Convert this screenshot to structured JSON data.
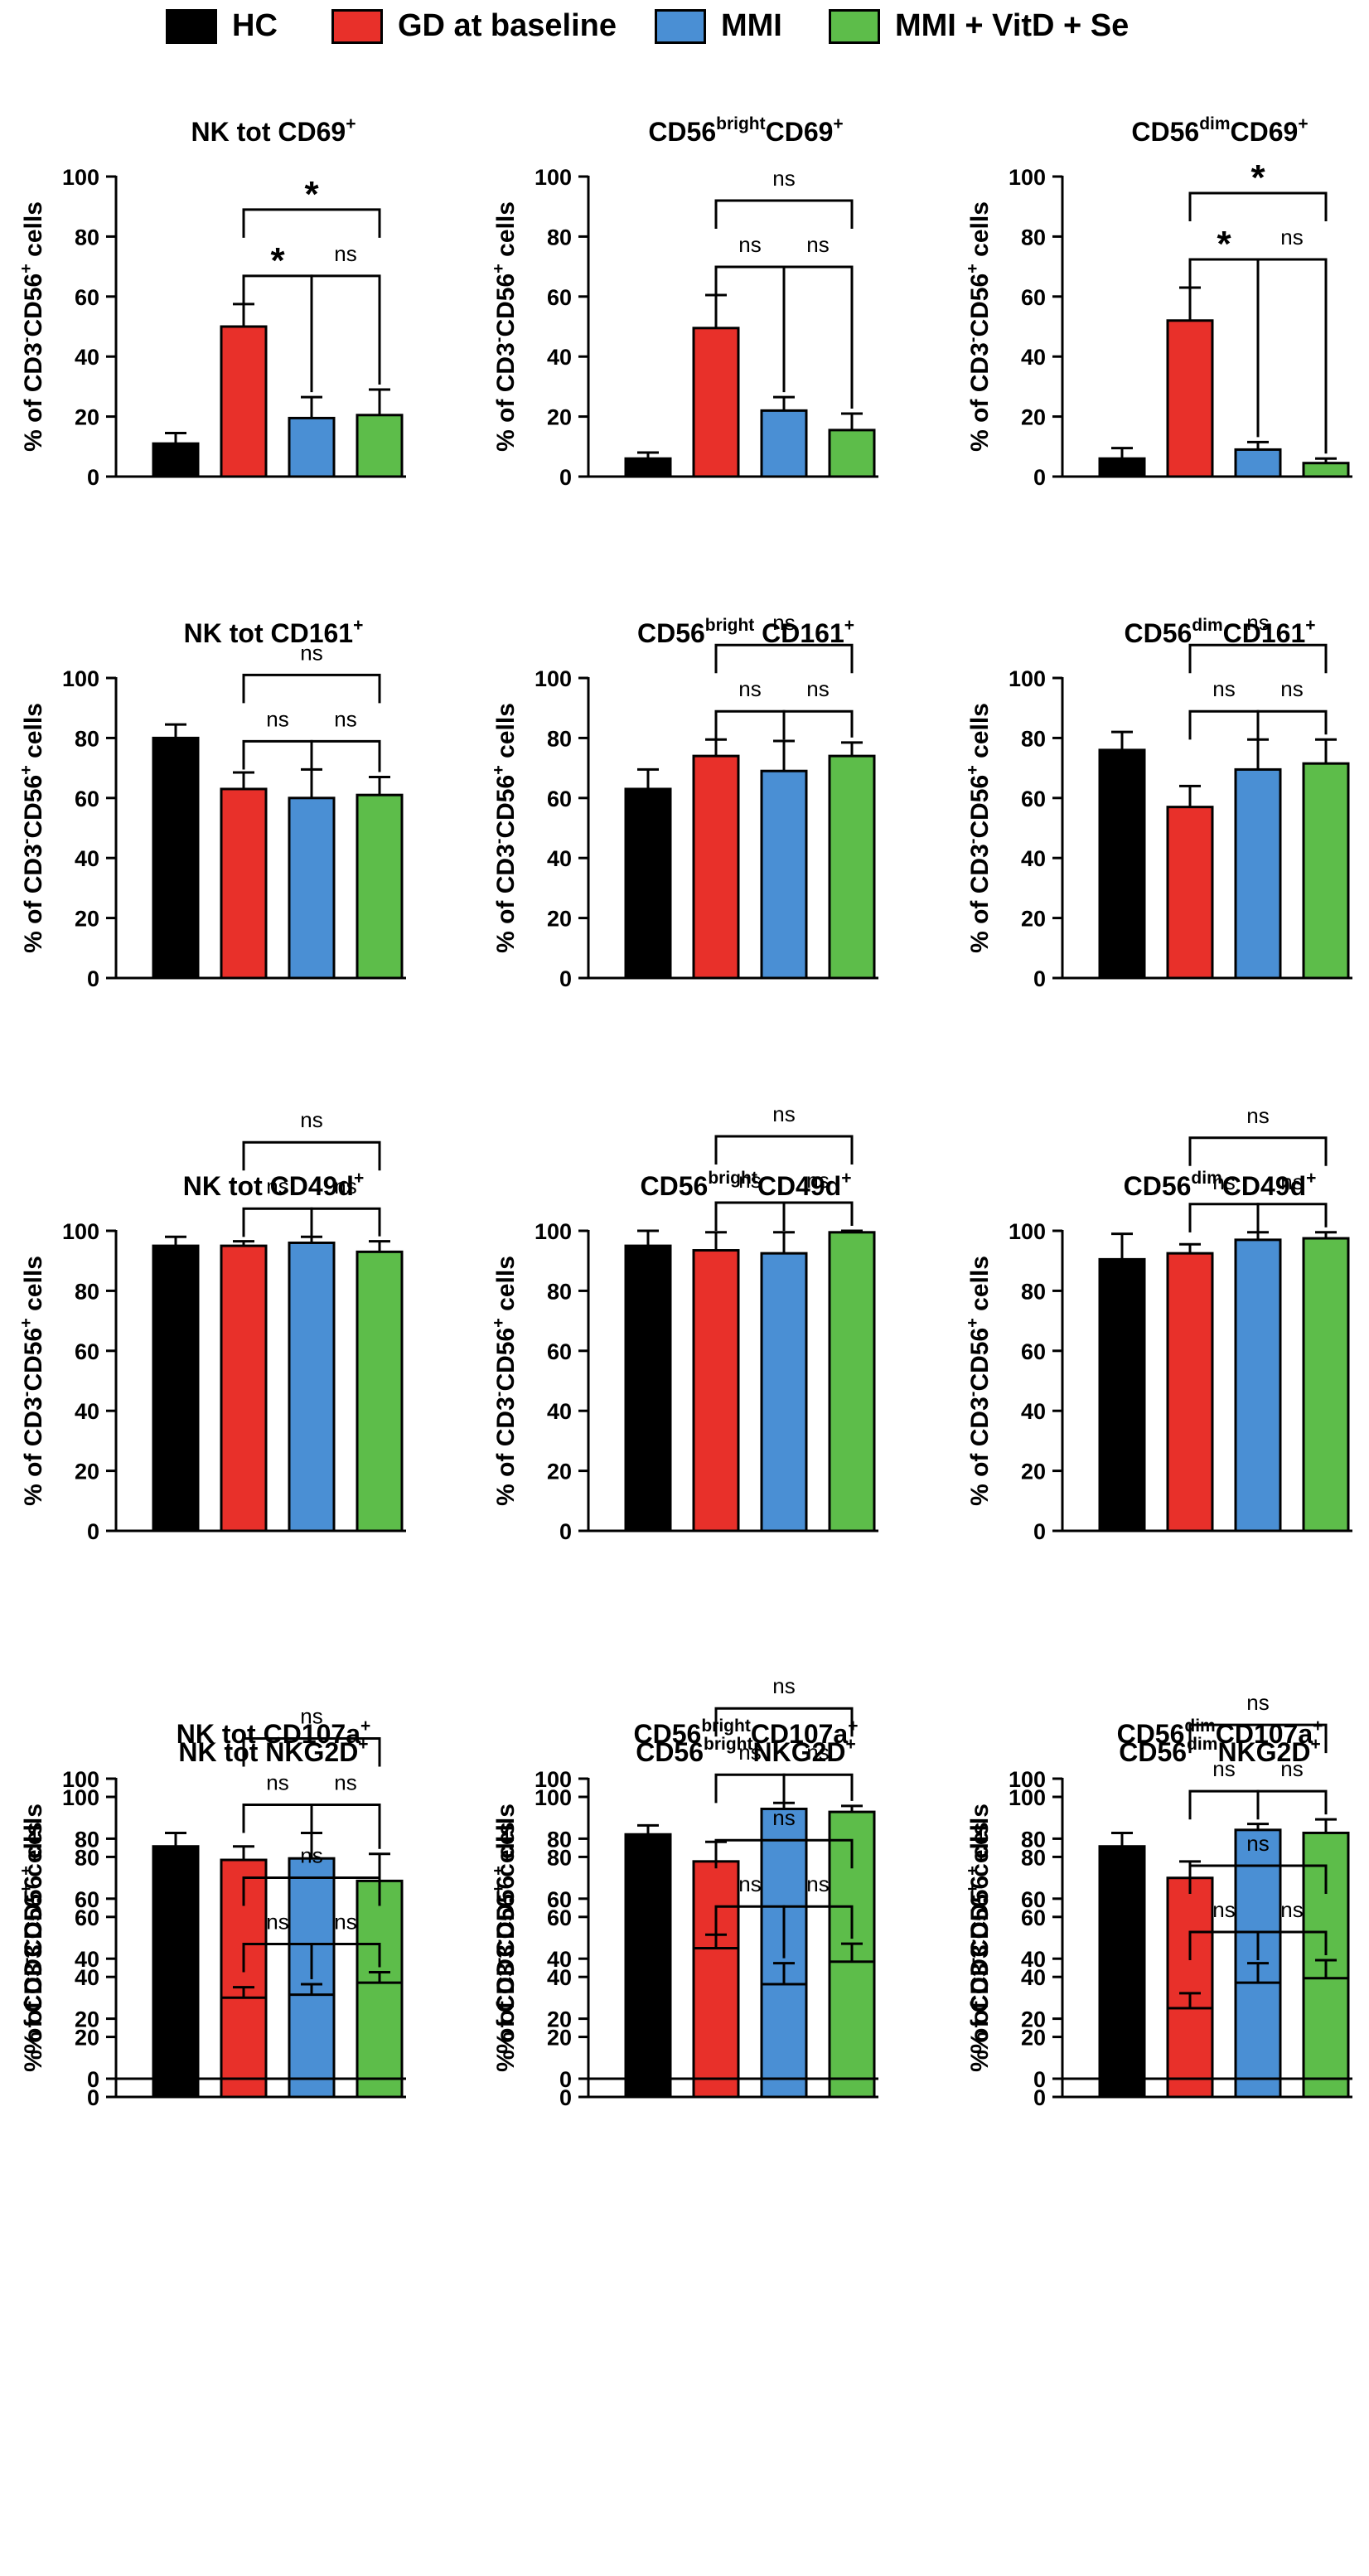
{
  "legend": [
    {
      "label": "HC",
      "color": "#000000"
    },
    {
      "label": "GD at baseline",
      "color": "#e8302a"
    },
    {
      "label": "MMI",
      "color": "#4a8fd4"
    },
    {
      "label": "MMI + VitD + Se",
      "color": "#5dbd4a"
    }
  ],
  "group_colors": [
    "#000000",
    "#e8302a",
    "#4a8fd4",
    "#5dbd4a"
  ],
  "y_axis_label": {
    "prefix": "% of CD3",
    "minus": "-",
    "middle": "CD56",
    "plus": "+",
    "suffix": " cells"
  },
  "chart_data": [
    {
      "type": "bar",
      "title": [
        {
          "t": "NK tot CD69"
        },
        {
          "t": "+",
          "sup": true
        }
      ],
      "categories": [
        "HC",
        "GD at baseline",
        "MMI",
        "MMI + VitD + Se"
      ],
      "values": [
        11,
        50,
        19.5,
        20.5
      ],
      "errors": [
        3.5,
        7.5,
        7,
        8.5
      ],
      "ylim": [
        0,
        100
      ],
      "yticks": [
        0,
        20,
        40,
        60,
        80,
        100
      ],
      "ylabel": "% of CD3-CD56+ cells",
      "comparisons": [
        {
          "from": 1,
          "to": 2,
          "label": "*",
          "star": true
        },
        {
          "from": 2,
          "to": 3,
          "label": "ns"
        },
        {
          "from": 1,
          "to": 3,
          "label": "*",
          "star": true
        }
      ]
    },
    {
      "type": "bar",
      "title": [
        {
          "t": "CD56"
        },
        {
          "t": "bright",
          "sup": true
        },
        {
          "t": "CD69"
        },
        {
          "t": "+",
          "sup": true
        }
      ],
      "categories": [
        "HC",
        "GD at baseline",
        "MMI",
        "MMI + VitD + Se"
      ],
      "values": [
        6,
        49.5,
        22,
        15.5
      ],
      "errors": [
        2,
        11,
        4.5,
        5.5
      ],
      "ylim": [
        0,
        100
      ],
      "yticks": [
        0,
        20,
        40,
        60,
        80,
        100
      ],
      "ylabel": "% of CD3-CD56+ cells",
      "comparisons": [
        {
          "from": 1,
          "to": 2,
          "label": "ns"
        },
        {
          "from": 2,
          "to": 3,
          "label": "ns"
        },
        {
          "from": 1,
          "to": 3,
          "label": "ns"
        }
      ]
    },
    {
      "type": "bar",
      "title": [
        {
          "t": "CD56"
        },
        {
          "t": "dim",
          "sup": true
        },
        {
          "t": "CD69"
        },
        {
          "t": "+",
          "sup": true
        }
      ],
      "categories": [
        "HC",
        "GD at baseline",
        "MMI",
        "MMI + VitD + Se"
      ],
      "values": [
        6,
        52,
        9,
        4.5
      ],
      "errors": [
        3.5,
        11,
        2.5,
        1.5
      ],
      "ylim": [
        0,
        100
      ],
      "yticks": [
        0,
        20,
        40,
        60,
        80,
        100
      ],
      "ylabel": "% of CD3-CD56+ cells",
      "comparisons": [
        {
          "from": 1,
          "to": 2,
          "label": "*",
          "star": true
        },
        {
          "from": 2,
          "to": 3,
          "label": "ns"
        },
        {
          "from": 1,
          "to": 3,
          "label": "*",
          "star": true
        }
      ]
    },
    {
      "type": "bar",
      "title": [
        {
          "t": "NK tot CD161"
        },
        {
          "t": "+",
          "sup": true
        }
      ],
      "categories": [
        "HC",
        "GD at baseline",
        "MMI",
        "MMI + VitD + Se"
      ],
      "values": [
        80,
        63,
        60,
        61
      ],
      "errors": [
        4.5,
        5.5,
        9.5,
        6
      ],
      "ylim": [
        0,
        100
      ],
      "yticks": [
        0,
        20,
        40,
        60,
        80,
        100
      ],
      "ylabel": "% of CD3-CD56+ cells",
      "comparisons": [
        {
          "from": 1,
          "to": 2,
          "label": "ns"
        },
        {
          "from": 2,
          "to": 3,
          "label": "ns"
        },
        {
          "from": 1,
          "to": 3,
          "label": "ns"
        }
      ]
    },
    {
      "type": "bar",
      "title": [
        {
          "t": "CD56"
        },
        {
          "t": "bright",
          "sup": true
        },
        {
          "t": " CD161"
        },
        {
          "t": "+",
          "sup": true
        }
      ],
      "categories": [
        "HC",
        "GD at baseline",
        "MMI",
        "MMI + VitD + Se"
      ],
      "values": [
        63,
        74,
        69,
        74
      ],
      "errors": [
        6.5,
        5.5,
        10,
        4.5
      ],
      "ylim": [
        0,
        100
      ],
      "yticks": [
        0,
        20,
        40,
        60,
        80,
        100
      ],
      "ylabel": "% of CD3-CD56+ cells",
      "comparisons": [
        {
          "from": 1,
          "to": 2,
          "label": "ns"
        },
        {
          "from": 2,
          "to": 3,
          "label": "ns"
        },
        {
          "from": 1,
          "to": 3,
          "label": "ns"
        }
      ]
    },
    {
      "type": "bar",
      "title": [
        {
          "t": "CD56"
        },
        {
          "t": "dim",
          "sup": true
        },
        {
          "t": "CD161"
        },
        {
          "t": "+",
          "sup": true
        }
      ],
      "categories": [
        "HC",
        "GD at baseline",
        "MMI",
        "MMI + VitD + Se"
      ],
      "values": [
        76,
        57,
        69.5,
        71.5
      ],
      "errors": [
        6,
        7,
        10,
        8
      ],
      "ylim": [
        0,
        100
      ],
      "yticks": [
        0,
        20,
        40,
        60,
        80,
        100
      ],
      "ylabel": "% of CD3-CD56+ cells",
      "comparisons": [
        {
          "from": 1,
          "to": 2,
          "label": "ns"
        },
        {
          "from": 2,
          "to": 3,
          "label": "ns"
        },
        {
          "from": 1,
          "to": 3,
          "label": "ns"
        }
      ]
    },
    {
      "type": "bar",
      "title": [
        {
          "t": "NK tot CD49d"
        },
        {
          "t": "+",
          "sup": true
        }
      ],
      "categories": [
        "HC",
        "GD at baseline",
        "MMI",
        "MMI + VitD + Se"
      ],
      "values": [
        95,
        95,
        96,
        93
      ],
      "errors": [
        3,
        1.5,
        2,
        3.5
      ],
      "ylim": [
        0,
        100
      ],
      "yticks": [
        0,
        20,
        40,
        60,
        80,
        100
      ],
      "ylabel": "% of CD3-CD56+ cells",
      "comparisons": [
        {
          "from": 1,
          "to": 2,
          "label": "ns"
        },
        {
          "from": 2,
          "to": 3,
          "label": "ns"
        },
        {
          "from": 1,
          "to": 3,
          "label": "ns"
        }
      ]
    },
    {
      "type": "bar",
      "title": [
        {
          "t": "CD56"
        },
        {
          "t": "bright",
          "sup": true
        },
        {
          "t": "CD49d"
        },
        {
          "t": "+",
          "sup": true
        }
      ],
      "categories": [
        "HC",
        "GD at baseline",
        "MMI",
        "MMI + VitD + Se"
      ],
      "values": [
        95,
        93.5,
        92.5,
        99.5
      ],
      "errors": [
        5,
        6,
        7,
        0.5
      ],
      "ylim": [
        0,
        100
      ],
      "yticks": [
        0,
        20,
        40,
        60,
        80,
        100
      ],
      "ylabel": "% of CD3-CD56+ cells",
      "comparisons": [
        {
          "from": 1,
          "to": 2,
          "label": "ns"
        },
        {
          "from": 2,
          "to": 3,
          "label": "ns"
        },
        {
          "from": 1,
          "to": 3,
          "label": "ns"
        }
      ]
    },
    {
      "type": "bar",
      "title": [
        {
          "t": "CD56"
        },
        {
          "t": "dim",
          "sup": true
        },
        {
          "t": "CD49d"
        },
        {
          "t": "+",
          "sup": true
        }
      ],
      "categories": [
        "HC",
        "GD at baseline",
        "MMI",
        "MMI + VitD + Se"
      ],
      "values": [
        90.5,
        92.5,
        97,
        97.5
      ],
      "errors": [
        8.5,
        3,
        2.5,
        2
      ],
      "ylim": [
        0,
        100
      ],
      "yticks": [
        0,
        20,
        40,
        60,
        80,
        100
      ],
      "ylabel": "% of CD3-CD56+ cells",
      "comparisons": [
        {
          "from": 1,
          "to": 2,
          "label": "ns"
        },
        {
          "from": 2,
          "to": 3,
          "label": "ns"
        },
        {
          "from": 1,
          "to": 3,
          "label": "ns"
        }
      ]
    },
    {
      "type": "bar",
      "title": [
        {
          "t": "NK tot NKG2D"
        },
        {
          "t": "+",
          "sup": true
        }
      ],
      "categories": [
        "HC",
        "GD at baseline",
        "MMI",
        "MMI + VitD + Se"
      ],
      "values": [
        83.5,
        79,
        79.5,
        72
      ],
      "errors": [
        4.5,
        4.5,
        8.5,
        9
      ],
      "ylim": [
        0,
        100
      ],
      "yticks": [
        0,
        20,
        40,
        60,
        80,
        100
      ],
      "ylabel": "% of CD3-CD56+ cells",
      "comparisons": [
        {
          "from": 1,
          "to": 2,
          "label": "ns"
        },
        {
          "from": 2,
          "to": 3,
          "label": "ns"
        },
        {
          "from": 1,
          "to": 3,
          "label": "ns"
        }
      ]
    },
    {
      "type": "bar",
      "title": [
        {
          "t": "CD56"
        },
        {
          "t": "bright",
          "sup": true
        },
        {
          "t": "NKG2D"
        },
        {
          "t": "+",
          "sup": true
        }
      ],
      "categories": [
        "HC",
        "GD at baseline",
        "MMI",
        "MMI + VitD + Se"
      ],
      "values": [
        87.5,
        78.5,
        96,
        95
      ],
      "errors": [
        3,
        6.5,
        2,
        2
      ],
      "ylim": [
        0,
        100
      ],
      "yticks": [
        0,
        20,
        40,
        60,
        80,
        100
      ],
      "ylabel": "% of CD3-CD56+ cells",
      "comparisons": [
        {
          "from": 1,
          "to": 2,
          "label": "ns"
        },
        {
          "from": 2,
          "to": 3,
          "label": "ns"
        },
        {
          "from": 1,
          "to": 3,
          "label": "ns"
        }
      ]
    },
    {
      "type": "bar",
      "title": [
        {
          "t": "CD56"
        },
        {
          "t": "dim",
          "sup": true
        },
        {
          "t": "NKG2D"
        },
        {
          "t": "+",
          "sup": true
        }
      ],
      "categories": [
        "HC",
        "GD at baseline",
        "MMI",
        "MMI + VitD + Se"
      ],
      "values": [
        83.5,
        73,
        89,
        88
      ],
      "errors": [
        4.5,
        5.5,
        2,
        4.5
      ],
      "ylim": [
        0,
        100
      ],
      "yticks": [
        0,
        20,
        40,
        60,
        80,
        100
      ],
      "ylabel": "% of CD3-CD56+ cells",
      "comparisons": [
        {
          "from": 1,
          "to": 2,
          "label": "ns"
        },
        {
          "from": 2,
          "to": 3,
          "label": "ns"
        },
        {
          "from": 1,
          "to": 3,
          "label": "ns"
        }
      ]
    },
    {
      "type": "bar",
      "title": [
        {
          "t": "NK tot CD107a"
        },
        {
          "t": "+",
          "sup": true
        }
      ],
      "categories": [
        "HC",
        "GD at baseline",
        "MMI",
        "MMI + VitD + Se"
      ],
      "values": [
        55,
        27,
        28,
        32
      ],
      "errors": [
        5,
        3.5,
        3.5,
        3.5
      ],
      "ylim": [
        0,
        100
      ],
      "yticks": [
        0,
        20,
        40,
        60,
        80,
        100
      ],
      "ylabel": "% of CD3-CD56+ cells",
      "comparisons": [
        {
          "from": 1,
          "to": 2,
          "label": "ns"
        },
        {
          "from": 2,
          "to": 3,
          "label": "ns"
        },
        {
          "from": 1,
          "to": 3,
          "label": "ns"
        }
      ]
    },
    {
      "type": "bar",
      "title": [
        {
          "t": "CD56"
        },
        {
          "t": "bright",
          "sup": true
        },
        {
          "t": "CD107a"
        },
        {
          "t": "+",
          "sup": true
        }
      ],
      "categories": [
        "HC",
        "GD at baseline",
        "MMI",
        "MMI + VitD + Se"
      ],
      "values": [
        75,
        43.5,
        31.5,
        39
      ],
      "errors": [
        4.5,
        4.5,
        7,
        6
      ],
      "ylim": [
        0,
        100
      ],
      "yticks": [
        0,
        20,
        40,
        60,
        80,
        100
      ],
      "ylabel": "% of CD3-CD56+ cells",
      "comparisons": [
        {
          "from": 1,
          "to": 2,
          "label": "ns"
        },
        {
          "from": 2,
          "to": 3,
          "label": "ns"
        },
        {
          "from": 1,
          "to": 3,
          "label": "ns"
        }
      ]
    },
    {
      "type": "bar",
      "title": [
        {
          "t": "CD56"
        },
        {
          "t": "dim",
          "sup": true
        },
        {
          "t": "CD107a"
        },
        {
          "t": "+",
          "sup": true
        }
      ],
      "categories": [
        "HC",
        "GD at baseline",
        "MMI",
        "MMI + VitD + Se"
      ],
      "values": [
        60,
        23.5,
        32,
        33.5
      ],
      "errors": [
        9,
        5,
        6.5,
        6
      ],
      "ylim": [
        0,
        100
      ],
      "yticks": [
        0,
        20,
        40,
        60,
        80,
        100
      ],
      "ylabel": "% of CD3-CD56+ cells",
      "comparisons": [
        {
          "from": 1,
          "to": 2,
          "label": "ns"
        },
        {
          "from": 2,
          "to": 3,
          "label": "ns"
        },
        {
          "from": 1,
          "to": 3,
          "label": "ns"
        }
      ]
    }
  ]
}
